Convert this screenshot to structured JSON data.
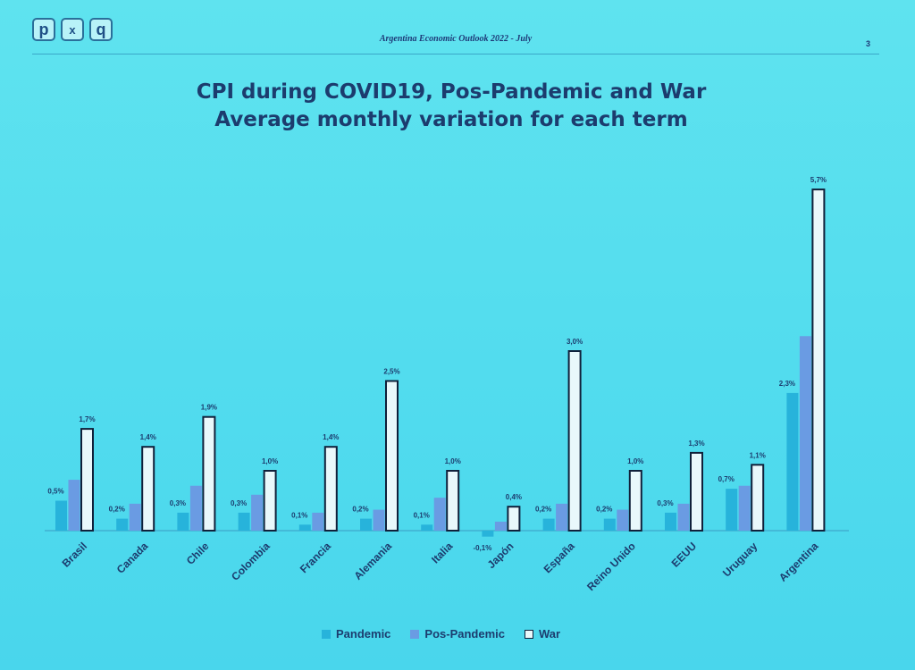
{
  "header": {
    "logo_letters": [
      "p",
      "x",
      "q"
    ],
    "title": "Argentina Economic Outlook 2022 - July",
    "page_number": "3"
  },
  "colors": {
    "pandemic": "#27b3db",
    "pos_pandemic": "#6a9be3",
    "war_fill": "#e9f8fb",
    "war_stroke": "#10203a",
    "text": "#1c3c6e"
  },
  "chart_data": {
    "type": "bar",
    "title": "CPI during COVID19, Pos-Pandemic and War",
    "subtitle": "Average monthly variation for each term",
    "xlabel": "",
    "ylabel": "",
    "ylim": [
      -0.1,
      5.7
    ],
    "grid": false,
    "legend_position": "bottom",
    "categories": [
      "Brasil",
      "Canada",
      "Chile",
      "Colombia",
      "Francia",
      "Alemania",
      "Italia",
      "Japón",
      "España",
      "Reino Unido",
      "EEUU",
      "Uruguay",
      "Argentina"
    ],
    "series": [
      {
        "name": "Pandemic",
        "values": [
          0.5,
          0.2,
          0.3,
          0.3,
          0.1,
          0.2,
          0.1,
          -0.1,
          0.2,
          0.2,
          0.3,
          0.7,
          2.3
        ],
        "labels": [
          "0,5%",
          "0,2%",
          "0,3%",
          "0,3%",
          "0,1%",
          "0,2%",
          "0,1%",
          "-0,1%",
          "0,2%",
          "0,2%",
          "0,3%",
          "0,7%",
          "2,3%"
        ]
      },
      {
        "name": "Pos-Pandemic",
        "values": [
          0.85,
          0.45,
          0.75,
          0.6,
          0.3,
          0.35,
          0.55,
          0.15,
          0.45,
          0.35,
          0.45,
          0.75,
          3.25
        ],
        "labels": []
      },
      {
        "name": "War",
        "values": [
          1.7,
          1.4,
          1.9,
          1.0,
          1.4,
          2.5,
          1.0,
          0.4,
          3.0,
          1.0,
          1.3,
          1.1,
          5.7
        ],
        "labels": [
          "1,7%",
          "1,4%",
          "1,9%",
          "1,0%",
          "1,4%",
          "2,5%",
          "1,0%",
          "0,4%",
          "3,0%",
          "1,0%",
          "1,3%",
          "1,1%",
          "5,7%"
        ]
      }
    ]
  }
}
